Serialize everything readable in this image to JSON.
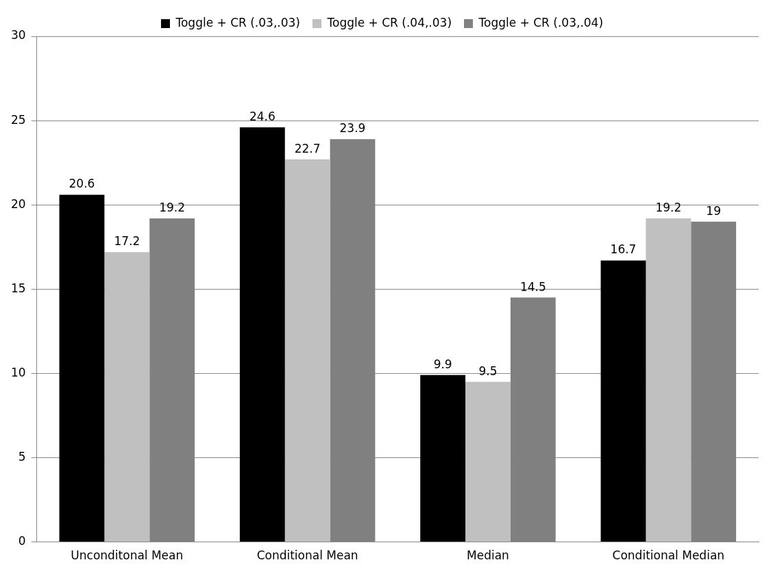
{
  "chart_data": {
    "type": "bar",
    "categories": [
      "Unconditonal Mean",
      "Conditional Mean",
      "Median",
      "Conditional Median"
    ],
    "series": [
      {
        "name": "Toggle + CR (.03,.03)",
        "color": "#000000",
        "values": [
          20.6,
          24.6,
          9.9,
          16.7
        ]
      },
      {
        "name": "Toggle + CR (.04,.03)",
        "color": "#c0c0c0",
        "values": [
          17.2,
          22.7,
          9.5,
          19.2
        ]
      },
      {
        "name": "Toggle + CR (.03,.04)",
        "color": "#808080",
        "values": [
          19.2,
          23.9,
          14.5,
          19
        ]
      }
    ],
    "ylim": [
      0,
      30
    ],
    "yticks": [
      0,
      5,
      10,
      15,
      20,
      25,
      30
    ],
    "grid": "y",
    "legend": "top",
    "data_labels": true
  }
}
